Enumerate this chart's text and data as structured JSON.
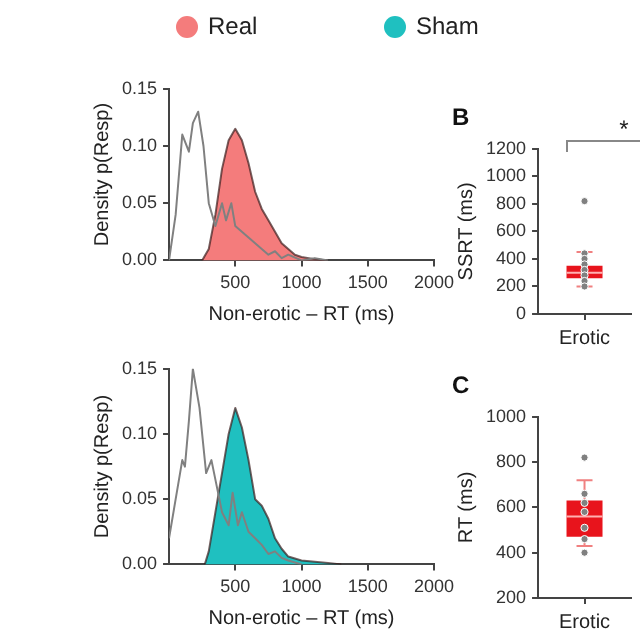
{
  "chart_data": [
    {
      "type": "area",
      "xlabel": "Non-erotic – RT (ms)",
      "ylabel": "Density p(Resp)",
      "xlim": [
        0,
        2000
      ],
      "xticks": [
        500,
        1000,
        1500,
        2000
      ],
      "ylim": [
        0,
        0.15
      ],
      "yticks": [
        {
          "value": 0,
          "label": "0.00"
        },
        {
          "value": 0.05,
          "label": "0.05"
        },
        {
          "value": 0.1,
          "label": "0.10"
        },
        {
          "value": 0.15,
          "label": "0.15"
        }
      ],
      "legend": "top",
      "series": [
        {
          "name": "Real",
          "color": "#f47c7c",
          "x": [
            250,
            300,
            350,
            400,
            450,
            500,
            550,
            600,
            650,
            700,
            750,
            800,
            850,
            900,
            950,
            1000,
            1100,
            1200
          ],
          "values": [
            0,
            0.01,
            0.04,
            0.08,
            0.105,
            0.115,
            0.105,
            0.085,
            0.06,
            0.045,
            0.035,
            0.025,
            0.015,
            0.01,
            0.005,
            0.003,
            0.001,
            0
          ]
        },
        {
          "type": "line",
          "color": "#808080",
          "x": [
            0,
            50,
            100,
            150,
            180,
            220,
            260,
            300,
            350,
            400,
            430,
            470,
            500,
            550,
            600,
            650,
            700,
            750,
            800,
            850,
            900,
            1000,
            1100,
            1200
          ],
          "values": [
            0,
            0.04,
            0.11,
            0.095,
            0.12,
            0.13,
            0.1,
            0.05,
            0.03,
            0.05,
            0.035,
            0.05,
            0.03,
            0.025,
            0.02,
            0.015,
            0.01,
            0.005,
            0.008,
            0.002,
            0.005,
            0,
            0.002,
            0
          ]
        }
      ]
    },
    {
      "type": "area",
      "xlabel": "Non-erotic – RT (ms)",
      "ylabel": "Density p(Resp)",
      "xlim": [
        0,
        2000
      ],
      "xticks": [
        500,
        1000,
        1500,
        2000
      ],
      "ylim": [
        0,
        0.15
      ],
      "yticks": [
        {
          "value": 0,
          "label": "0.00"
        },
        {
          "value": 0.05,
          "label": "0.05"
        },
        {
          "value": 0.1,
          "label": "0.10"
        },
        {
          "value": 0.15,
          "label": "0.15"
        }
      ],
      "legend": "top",
      "series": [
        {
          "name": "Sham",
          "color": "#1fc0c0",
          "x": [
            270,
            300,
            350,
            400,
            450,
            500,
            550,
            600,
            650,
            700,
            750,
            800,
            850,
            900,
            1000,
            1100,
            1200,
            1300
          ],
          "values": [
            0,
            0.01,
            0.04,
            0.07,
            0.1,
            0.12,
            0.105,
            0.08,
            0.05,
            0.045,
            0.035,
            0.02,
            0.012,
            0.006,
            0.003,
            0.002,
            0.001,
            0
          ]
        },
        {
          "type": "line",
          "color": "#808080",
          "x": [
            0,
            50,
            100,
            120,
            150,
            180,
            230,
            280,
            320,
            360,
            400,
            450,
            480,
            520,
            550,
            600,
            650,
            700,
            750,
            800,
            850,
            900,
            1000
          ],
          "values": [
            0.02,
            0.05,
            0.08,
            0.075,
            0.11,
            0.15,
            0.12,
            0.07,
            0.08,
            0.06,
            0.04,
            0.03,
            0.055,
            0.03,
            0.04,
            0.025,
            0.02,
            0.015,
            0.008,
            0.01,
            0.005,
            0.003,
            0
          ]
        }
      ]
    },
    {
      "type": "box",
      "title": "B",
      "ylabel": "SSRT (ms)",
      "categories": [
        "Erotic"
      ],
      "ylim": [
        0,
        1200
      ],
      "yticks": [
        0,
        200,
        400,
        600,
        800,
        1000,
        1200
      ],
      "annotations": [
        "*"
      ],
      "series": [
        {
          "type": "box",
          "color": "#e8141c",
          "boxes": [
            {
              "low": 200,
              "q1": 260,
              "median": 300,
              "q3": 350,
              "high": 450
            }
          ]
        },
        {
          "type": "scatter",
          "color": "#808080",
          "x": [
            "Erotic",
            "Erotic",
            "Erotic",
            "Erotic",
            "Erotic",
            "Erotic",
            "Erotic",
            "Erotic"
          ],
          "values": [
            820,
            440,
            400,
            360,
            320,
            280,
            240,
            200
          ]
        }
      ]
    },
    {
      "type": "box",
      "title": "C",
      "ylabel": "RT (ms)",
      "categories": [
        "Erotic"
      ],
      "ylim": [
        200,
        1000
      ],
      "yticks": [
        200,
        400,
        600,
        800,
        1000
      ],
      "series": [
        {
          "type": "box",
          "color": "#e8141c",
          "boxes": [
            {
              "low": 430,
              "q1": 470,
              "median": 560,
              "q3": 630,
              "high": 720
            }
          ]
        },
        {
          "type": "scatter",
          "color": "#808080",
          "x": [
            "Erotic",
            "Erotic",
            "Erotic",
            "Erotic",
            "Erotic",
            "Erotic",
            "Erotic"
          ],
          "values": [
            820,
            660,
            620,
            580,
            510,
            460,
            400
          ]
        }
      ]
    }
  ]
}
